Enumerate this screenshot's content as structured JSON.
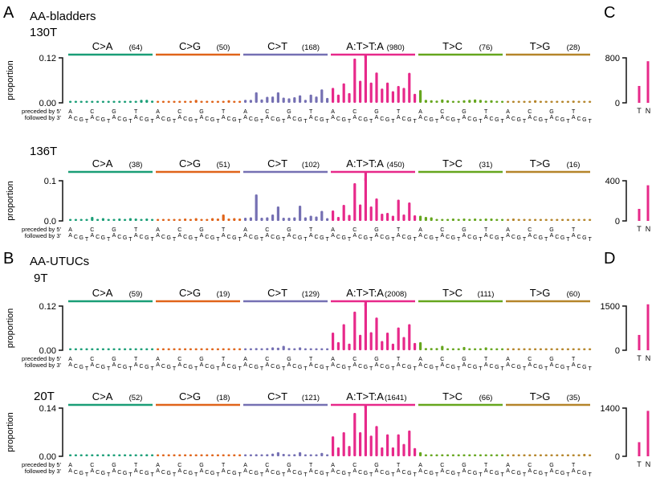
{
  "panel_labels": {
    "A": "A",
    "B": "B",
    "C": "C",
    "D": "D"
  },
  "group_titles": {
    "A": "AA-bladders",
    "B": "AA-UTUCs"
  },
  "context_labels": {
    "preceded": "preceded by 5'",
    "followed": "followed by 3'"
  },
  "bases": [
    "A",
    "C",
    "G",
    "T"
  ],
  "class_colors": {
    "C>A": "#1a9e77",
    "C>G": "#e0641a",
    "C>T": "#7570b3",
    "A:T>T:A": "#e7298a",
    "T>C": "#66a61e",
    "T>G": "#b5852a"
  },
  "chart_data": [
    {
      "type": "bar",
      "title": "130T",
      "group": "AA-bladders",
      "ylabel": "proportion",
      "yticks": [
        "0.00",
        "0.12"
      ],
      "ylim": [
        0,
        0.12
      ],
      "classes": [
        {
          "name": "C>A",
          "count": "(64)",
          "values": [
            0.004,
            0.004,
            0.003,
            0.004,
            0.005,
            0.005,
            0.005,
            0.005,
            0.004,
            0.005,
            0.004,
            0.005,
            0.005,
            0.008,
            0.008,
            0.006
          ]
        },
        {
          "name": "C>G",
          "count": "(50)",
          "values": [
            0.003,
            0.005,
            0.004,
            0.004,
            0.004,
            0.005,
            0.003,
            0.008,
            0.004,
            0.004,
            0.003,
            0.004,
            0.004,
            0.007,
            0.004,
            0.005
          ]
        },
        {
          "name": "C>T",
          "count": "(168)",
          "values": [
            0.008,
            0.008,
            0.028,
            0.009,
            0.016,
            0.017,
            0.028,
            0.014,
            0.012,
            0.015,
            0.02,
            0.008,
            0.022,
            0.017,
            0.036,
            0.013
          ]
        },
        {
          "name": "A:T>T:A",
          "count": "(980)",
          "values": [
            0.04,
            0.022,
            0.052,
            0.026,
            0.118,
            0.059,
            0.128,
            0.054,
            0.081,
            0.038,
            0.054,
            0.031,
            0.045,
            0.04,
            0.08,
            0.024
          ]
        },
        {
          "name": "T>C",
          "count": "(76)",
          "values": [
            0.034,
            0.008,
            0.007,
            0.006,
            0.009,
            0.007,
            0.005,
            0.005,
            0.007,
            0.008,
            0.009,
            0.008,
            0.006,
            0.007,
            0.005,
            0.004
          ]
        },
        {
          "name": "T>G",
          "count": "(28)",
          "values": [
            0.003,
            0.004,
            0.004,
            0.003,
            0.005,
            0.007,
            0.004,
            0.004,
            0.004,
            0.004,
            0.004,
            0.004,
            0.006,
            0.005,
            0.004,
            0.003
          ]
        }
      ],
      "tn": {
        "ylim": [
          0,
          800
        ],
        "yticks": [
          "0",
          "800"
        ],
        "categories": [
          "T",
          "N"
        ],
        "values": [
          300,
          740
        ]
      }
    },
    {
      "type": "bar",
      "title": "136T",
      "group": "AA-bladders",
      "ylabel": "proportion",
      "yticks": [
        "0.0",
        "0.1"
      ],
      "ylim": [
        0,
        0.1
      ],
      "classes": [
        {
          "name": "C>A",
          "count": "(38)",
          "values": [
            0.003,
            0.003,
            0.003,
            0.005,
            0.01,
            0.004,
            0.007,
            0.004,
            0.004,
            0.006,
            0.004,
            0.007,
            0.006,
            0.005,
            0.006,
            0.005
          ]
        },
        {
          "name": "C>G",
          "count": "(51)",
          "values": [
            0.005,
            0.005,
            0.005,
            0.004,
            0.005,
            0.006,
            0.004,
            0.007,
            0.005,
            0.004,
            0.007,
            0.006,
            0.016,
            0.006,
            0.007,
            0.006
          ]
        },
        {
          "name": "C>T",
          "count": "(102)",
          "values": [
            0.008,
            0.009,
            0.066,
            0.008,
            0.009,
            0.016,
            0.036,
            0.008,
            0.008,
            0.009,
            0.038,
            0.009,
            0.013,
            0.011,
            0.025,
            0.007
          ]
        },
        {
          "name": "A:T>T:A",
          "count": "(450)",
          "values": [
            0.026,
            0.01,
            0.04,
            0.015,
            0.094,
            0.041,
            0.108,
            0.036,
            0.056,
            0.018,
            0.02,
            0.013,
            0.053,
            0.016,
            0.046,
            0.014
          ]
        },
        {
          "name": "T>C",
          "count": "(31)",
          "values": [
            0.013,
            0.01,
            0.009,
            0.005,
            0.005,
            0.005,
            0.006,
            0.005,
            0.006,
            0.005,
            0.006,
            0.004,
            0.006,
            0.006,
            0.005,
            0.004
          ]
        },
        {
          "name": "T>G",
          "count": "(16)",
          "values": [
            0.005,
            0.006,
            0.005,
            0.003,
            0.003,
            0.003,
            0.004,
            0.004,
            0.004,
            0.004,
            0.004,
            0.005,
            0.004,
            0.003,
            0.003,
            0.003
          ]
        }
      ],
      "tn": {
        "ylim": [
          0,
          400
        ],
        "yticks": [
          "0",
          "400"
        ],
        "categories": [
          "T",
          "N"
        ],
        "values": [
          120,
          355
        ]
      }
    },
    {
      "type": "bar",
      "title": "9T",
      "group": "AA-UTUCs",
      "ylabel": "proportion",
      "yticks": [
        "0.00",
        "0.12"
      ],
      "ylim": [
        0,
        0.12
      ],
      "classes": [
        {
          "name": "C>A",
          "count": "(59)",
          "values": [
            0.003,
            0.003,
            0.003,
            0.004,
            0.004,
            0.004,
            0.004,
            0.003,
            0.004,
            0.003,
            0.003,
            0.003,
            0.003,
            0.003,
            0.004,
            0.003
          ]
        },
        {
          "name": "C>G",
          "count": "(19)",
          "values": [
            0.002,
            0.002,
            0.002,
            0.002,
            0.002,
            0.002,
            0.002,
            0.002,
            0.002,
            0.002,
            0.002,
            0.002,
            0.002,
            0.002,
            0.002,
            0.002
          ]
        },
        {
          "name": "C>T",
          "count": "(129)",
          "values": [
            0.004,
            0.005,
            0.006,
            0.004,
            0.006,
            0.008,
            0.007,
            0.012,
            0.006,
            0.005,
            0.008,
            0.004,
            0.004,
            0.004,
            0.004,
            0.004
          ]
        },
        {
          "name": "A:T>T:A",
          "count": "(2008)",
          "values": [
            0.048,
            0.022,
            0.071,
            0.018,
            0.105,
            0.042,
            0.128,
            0.049,
            0.089,
            0.025,
            0.048,
            0.018,
            0.062,
            0.036,
            0.071,
            0.02
          ]
        },
        {
          "name": "T>C",
          "count": "(111)",
          "values": [
            0.022,
            0.006,
            0.006,
            0.006,
            0.012,
            0.004,
            0.004,
            0.005,
            0.009,
            0.004,
            0.005,
            0.004,
            0.008,
            0.004,
            0.005,
            0.004
          ]
        },
        {
          "name": "T>G",
          "count": "(60)",
          "values": [
            0.003,
            0.003,
            0.003,
            0.004,
            0.003,
            0.004,
            0.004,
            0.005,
            0.004,
            0.004,
            0.004,
            0.003,
            0.004,
            0.004,
            0.003,
            0.003
          ]
        }
      ],
      "tn": {
        "ylim": [
          0,
          1500
        ],
        "yticks": [
          "0",
          "1500"
        ],
        "categories": [
          "T",
          "N"
        ],
        "values": [
          520,
          1560
        ]
      }
    },
    {
      "type": "bar",
      "title": "20T",
      "group": "AA-UTUCs",
      "ylabel": "proportion",
      "yticks": [
        "0.00",
        "0.14"
      ],
      "ylim": [
        0,
        0.14
      ],
      "classes": [
        {
          "name": "C>A",
          "count": "(52)",
          "values": [
            0.004,
            0.004,
            0.003,
            0.004,
            0.005,
            0.005,
            0.004,
            0.006,
            0.004,
            0.004,
            0.004,
            0.004,
            0.004,
            0.005,
            0.006,
            0.004
          ]
        },
        {
          "name": "C>G",
          "count": "(18)",
          "values": [
            0.003,
            0.003,
            0.003,
            0.003,
            0.003,
            0.003,
            0.003,
            0.003,
            0.003,
            0.003,
            0.003,
            0.003,
            0.004,
            0.003,
            0.003,
            0.003
          ]
        },
        {
          "name": "C>T",
          "count": "(121)",
          "values": [
            0.004,
            0.004,
            0.006,
            0.004,
            0.006,
            0.008,
            0.012,
            0.007,
            0.005,
            0.006,
            0.012,
            0.005,
            0.005,
            0.005,
            0.01,
            0.004
          ]
        },
        {
          "name": "A:T>T:A",
          "count": "(1641)",
          "values": [
            0.058,
            0.026,
            0.07,
            0.03,
            0.126,
            0.07,
            0.15,
            0.06,
            0.088,
            0.026,
            0.064,
            0.026,
            0.064,
            0.036,
            0.075,
            0.024
          ]
        },
        {
          "name": "T>C",
          "count": "(66)",
          "values": [
            0.012,
            0.004,
            0.004,
            0.004,
            0.005,
            0.004,
            0.004,
            0.004,
            0.004,
            0.004,
            0.004,
            0.004,
            0.004,
            0.004,
            0.004,
            0.003
          ]
        },
        {
          "name": "T>G",
          "count": "(35)",
          "values": [
            0.004,
            0.004,
            0.004,
            0.004,
            0.004,
            0.004,
            0.004,
            0.004,
            0.004,
            0.004,
            0.004,
            0.004,
            0.004,
            0.004,
            0.007,
            0.004
          ]
        }
      ],
      "tn": {
        "ylim": [
          0,
          1400
        ],
        "yticks": [
          "0",
          "1400"
        ],
        "categories": [
          "T",
          "N"
        ],
        "values": [
          410,
          1320
        ]
      }
    }
  ]
}
